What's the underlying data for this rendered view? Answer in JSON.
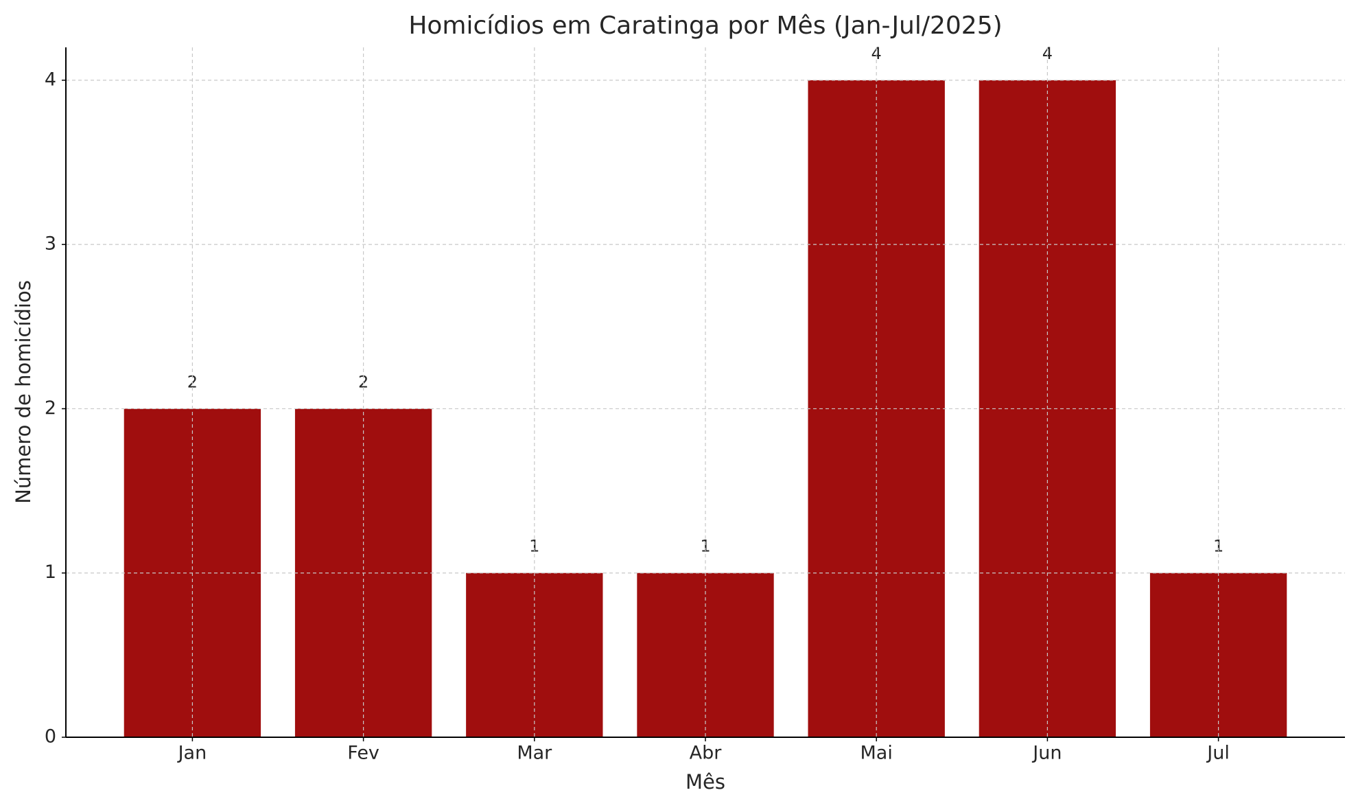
{
  "chart_data": {
    "type": "bar",
    "title": "Homicídios em Caratinga por Mês (Jan-Jul/2025)",
    "x_label": "Mês",
    "y_label": "Número de homicídios",
    "categories": [
      "Jan",
      "Fev",
      "Mar",
      "Abr",
      "Mai",
      "Jun",
      "Jul"
    ],
    "values": [
      2,
      2,
      1,
      1,
      4,
      4,
      1
    ],
    "color": "#a00e0e",
    "ylim": [
      0,
      4.2
    ],
    "yticks": [
      0,
      1,
      2,
      3,
      4
    ],
    "grid": true,
    "data_labels": true
  }
}
